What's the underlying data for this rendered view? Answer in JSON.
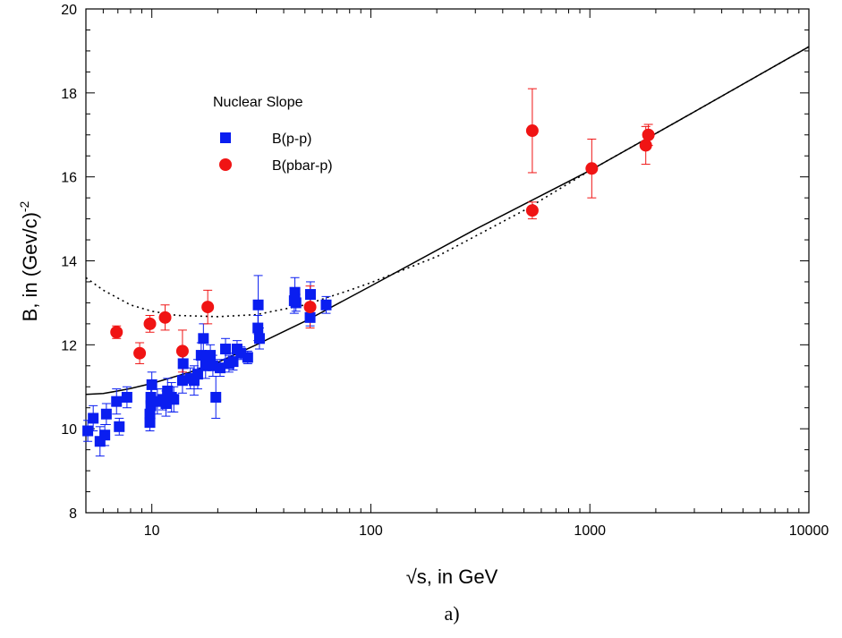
{
  "chart_data": {
    "type": "scatter",
    "xlabel": "√s, in GeV",
    "ylabel_main": "B, in (Gev/c)",
    "ylabel_sup": "-2",
    "caption": "a)",
    "x_scale": "log",
    "xlim": [
      5,
      10000
    ],
    "ylim": [
      8,
      20
    ],
    "x_ticks": [
      10,
      100,
      1000,
      10000
    ],
    "x_tick_labels": [
      "10",
      "100",
      "1000",
      "10000"
    ],
    "y_ticks": [
      8,
      10,
      12,
      14,
      16,
      18,
      20
    ],
    "y_tick_labels": [
      "8",
      "10",
      "12",
      "14",
      "16",
      "18",
      "20"
    ],
    "grid": false,
    "legend": {
      "title": "Nuclear Slope",
      "position": "top-left",
      "entries": [
        "B(p-p)",
        "B(pbar-p)"
      ]
    },
    "series": [
      {
        "name": "B(p-p)",
        "marker": "square",
        "color": "#0a1ef0",
        "points": [
          {
            "x": 5.1,
            "y": 9.95,
            "err": 0.25
          },
          {
            "x": 5.4,
            "y": 10.25,
            "err": 0.3
          },
          {
            "x": 5.8,
            "y": 9.7,
            "err": 0.35
          },
          {
            "x": 6.1,
            "y": 9.85,
            "err": 0.25
          },
          {
            "x": 6.2,
            "y": 10.35,
            "err": 0.25
          },
          {
            "x": 6.9,
            "y": 10.65,
            "err": 0.3
          },
          {
            "x": 7.1,
            "y": 10.05,
            "err": 0.2
          },
          {
            "x": 7.7,
            "y": 10.75,
            "err": 0.25
          },
          {
            "x": 9.8,
            "y": 10.15,
            "err": 0.2
          },
          {
            "x": 9.8,
            "y": 10.35,
            "err": 0.25
          },
          {
            "x": 9.9,
            "y": 10.55,
            "err": 0.3
          },
          {
            "x": 9.9,
            "y": 10.75,
            "err": 0.3
          },
          {
            "x": 10.0,
            "y": 11.05,
            "err": 0.3
          },
          {
            "x": 10.6,
            "y": 10.65,
            "err": 0.3
          },
          {
            "x": 11.2,
            "y": 10.7,
            "err": 0.25
          },
          {
            "x": 11.6,
            "y": 10.6,
            "err": 0.3
          },
          {
            "x": 11.8,
            "y": 10.9,
            "err": 0.3
          },
          {
            "x": 12.3,
            "y": 10.75,
            "err": 0.35
          },
          {
            "x": 12.6,
            "y": 10.7,
            "err": 0.3
          },
          {
            "x": 13.8,
            "y": 11.15,
            "err": 0.3
          },
          {
            "x": 13.9,
            "y": 11.55,
            "err": 0.3
          },
          {
            "x": 15.0,
            "y": 11.2,
            "err": 0.25
          },
          {
            "x": 15.6,
            "y": 11.15,
            "err": 0.35
          },
          {
            "x": 16.2,
            "y": 11.3,
            "err": 0.35
          },
          {
            "x": 16.8,
            "y": 11.75,
            "err": 0.3
          },
          {
            "x": 17.2,
            "y": 12.15,
            "err": 0.35
          },
          {
            "x": 17.6,
            "y": 11.5,
            "err": 0.3
          },
          {
            "x": 18.5,
            "y": 11.75,
            "err": 0.25
          },
          {
            "x": 19.0,
            "y": 11.5,
            "err": 0.25
          },
          {
            "x": 19.6,
            "y": 10.75,
            "err": 0.5
          },
          {
            "x": 20.5,
            "y": 11.45,
            "err": 0.2
          },
          {
            "x": 21.7,
            "y": 11.9,
            "err": 0.25
          },
          {
            "x": 22.5,
            "y": 11.55,
            "err": 0.2
          },
          {
            "x": 23.5,
            "y": 11.6,
            "err": 0.2
          },
          {
            "x": 24.5,
            "y": 11.9,
            "err": 0.2
          },
          {
            "x": 25.5,
            "y": 11.8,
            "err": 0.15
          },
          {
            "x": 27.4,
            "y": 11.7,
            "err": 0.15
          },
          {
            "x": 30.5,
            "y": 12.4,
            "err": 0.3
          },
          {
            "x": 30.6,
            "y": 12.95,
            "err": 0.7
          },
          {
            "x": 31.0,
            "y": 12.15,
            "err": 0.25
          },
          {
            "x": 44.7,
            "y": 13.05,
            "err": 0.3
          },
          {
            "x": 45.0,
            "y": 13.25,
            "err": 0.35
          },
          {
            "x": 45.5,
            "y": 13.0,
            "err": 0.2
          },
          {
            "x": 52.8,
            "y": 12.65,
            "err": 0.2
          },
          {
            "x": 53.0,
            "y": 13.2,
            "err": 0.3
          },
          {
            "x": 62.5,
            "y": 12.95,
            "err": 0.2
          }
        ]
      },
      {
        "name": "B(pbar-p)",
        "marker": "circle",
        "color": "#f01414",
        "points": [
          {
            "x": 6.9,
            "y": 12.3,
            "err": 0.15
          },
          {
            "x": 8.8,
            "y": 11.8,
            "err": 0.25
          },
          {
            "x": 9.8,
            "y": 12.5,
            "err": 0.2
          },
          {
            "x": 11.5,
            "y": 12.65,
            "err": 0.3
          },
          {
            "x": 13.8,
            "y": 11.85,
            "err": 0.5
          },
          {
            "x": 18.0,
            "y": 12.9,
            "err": 0.4
          },
          {
            "x": 52.8,
            "y": 12.9,
            "err": 0.5
          },
          {
            "x": 546,
            "y": 17.1,
            "err": 1.0
          },
          {
            "x": 546,
            "y": 15.2,
            "err": 0.2
          },
          {
            "x": 1020,
            "y": 16.2,
            "err": 0.7
          },
          {
            "x": 1800,
            "y": 16.75,
            "err": 0.45
          },
          {
            "x": 1850,
            "y": 17.0,
            "err": 0.25
          }
        ]
      }
    ],
    "curves": [
      {
        "style": "solid",
        "points": [
          [
            5,
            10.82
          ],
          [
            6,
            10.84
          ],
          [
            7,
            10.9
          ],
          [
            8,
            10.96
          ],
          [
            10,
            11.08
          ],
          [
            15,
            11.35
          ],
          [
            20,
            11.58
          ],
          [
            30,
            12.0
          ],
          [
            50,
            12.56
          ],
          [
            100,
            13.4
          ],
          [
            300,
            14.75
          ],
          [
            1000,
            16.15
          ],
          [
            3000,
            17.55
          ],
          [
            10000,
            19.1
          ]
        ]
      },
      {
        "style": "dotted",
        "points": [
          [
            5,
            13.6
          ],
          [
            6,
            13.3
          ],
          [
            8,
            12.95
          ],
          [
            10,
            12.8
          ],
          [
            13,
            12.7
          ],
          [
            20,
            12.67
          ],
          [
            30,
            12.72
          ],
          [
            50,
            12.95
          ],
          [
            80,
            13.3
          ],
          [
            100,
            13.48
          ],
          [
            200,
            14.1
          ],
          [
            500,
            15.2
          ],
          [
            1000,
            16.15
          ],
          [
            3000,
            17.55
          ],
          [
            10000,
            19.1
          ]
        ]
      }
    ]
  }
}
